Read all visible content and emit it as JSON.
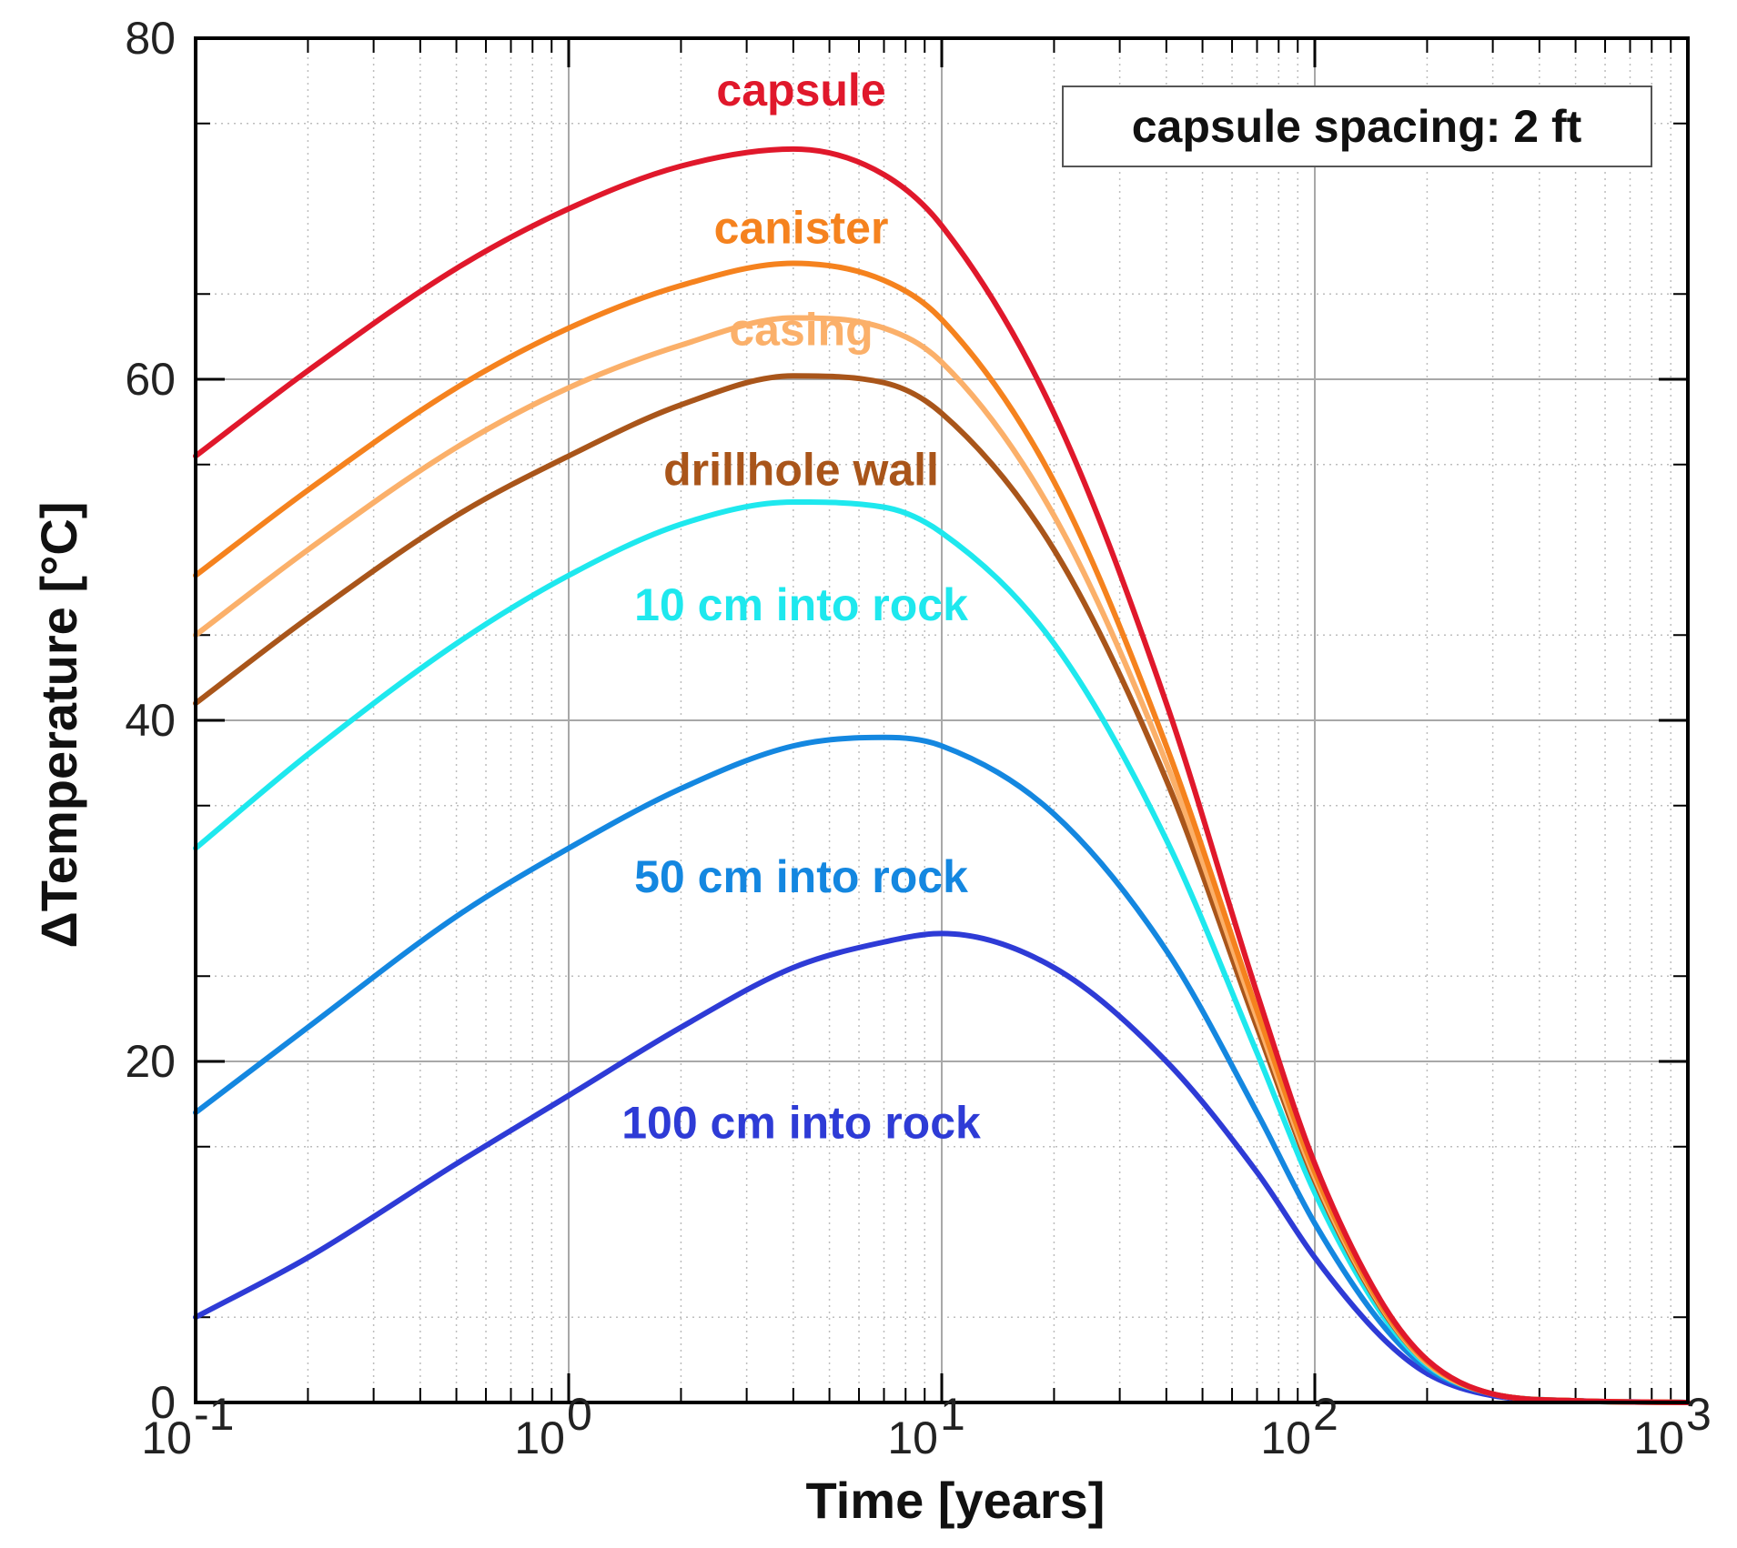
{
  "chart_data": {
    "type": "line",
    "title": "",
    "xlabel": "Time [years]",
    "ylabel": "ΔTemperature [°C]",
    "xscale": "log",
    "xlim": [
      0.1,
      1000
    ],
    "ylim": [
      0,
      80
    ],
    "grid": true,
    "annotation": "capsule spacing: 2 ft",
    "y_ticks": [
      "0",
      "20",
      "40",
      "60",
      "80"
    ],
    "x_ticks": [
      {
        "base": "10",
        "exp": "-1"
      },
      {
        "base": "10",
        "exp": "0"
      },
      {
        "base": "10",
        "exp": "1"
      },
      {
        "base": "10",
        "exp": "2"
      },
      {
        "base": "10",
        "exp": "3"
      }
    ],
    "x": [
      0.1,
      0.2,
      0.5,
      1,
      2,
      4,
      7,
      10,
      20,
      40,
      70,
      100,
      150,
      200,
      300,
      500,
      1000
    ],
    "series": [
      {
        "name": "capsule",
        "color": "#e0182b",
        "values": [
          55.5,
          60.5,
          66.5,
          70.0,
          72.5,
          73.5,
          72.0,
          69.0,
          58.0,
          41.0,
          24.0,
          14.0,
          6.0,
          2.5,
          0.5,
          0.1,
          0.0
        ]
      },
      {
        "name": "canister",
        "color": "#f5821e",
        "values": [
          48.5,
          53.5,
          59.5,
          63.0,
          65.5,
          66.8,
          65.8,
          63.5,
          54.0,
          38.5,
          23.0,
          13.5,
          5.8,
          2.4,
          0.5,
          0.1,
          0.0
        ]
      },
      {
        "name": "casing",
        "color": "#fbb06a",
        "values": [
          45.0,
          50.0,
          56.0,
          59.5,
          62.0,
          63.6,
          63.0,
          61.0,
          52.0,
          37.5,
          22.5,
          13.2,
          5.7,
          2.3,
          0.5,
          0.1,
          0.0
        ]
      },
      {
        "name": "drillhole wall",
        "color": "#a9551a",
        "values": [
          41.0,
          46.0,
          52.0,
          55.5,
          58.5,
          60.2,
          59.8,
          58.0,
          50.0,
          36.5,
          22.0,
          13.0,
          5.6,
          2.3,
          0.5,
          0.1,
          0.0
        ]
      },
      {
        "name": "10 cm into rock",
        "color": "#1ee8ee",
        "values": [
          32.5,
          38.0,
          44.5,
          48.5,
          51.5,
          52.8,
          52.5,
          51.0,
          44.5,
          33.0,
          20.5,
          12.3,
          5.3,
          2.2,
          0.5,
          0.1,
          0.0
        ]
      },
      {
        "name": "50 cm into rock",
        "color": "#1487e0",
        "values": [
          17.0,
          22.0,
          28.5,
          32.5,
          36.0,
          38.5,
          39.0,
          38.5,
          34.5,
          26.5,
          17.0,
          10.5,
          4.7,
          2.0,
          0.5,
          0.1,
          0.0
        ]
      },
      {
        "name": "100 cm into rock",
        "color": "#2e3bd6",
        "values": [
          5.0,
          8.5,
          14.0,
          18.0,
          22.0,
          25.5,
          27.0,
          27.5,
          25.5,
          20.0,
          13.5,
          8.5,
          3.9,
          1.7,
          0.4,
          0.1,
          0.0
        ]
      }
    ]
  }
}
